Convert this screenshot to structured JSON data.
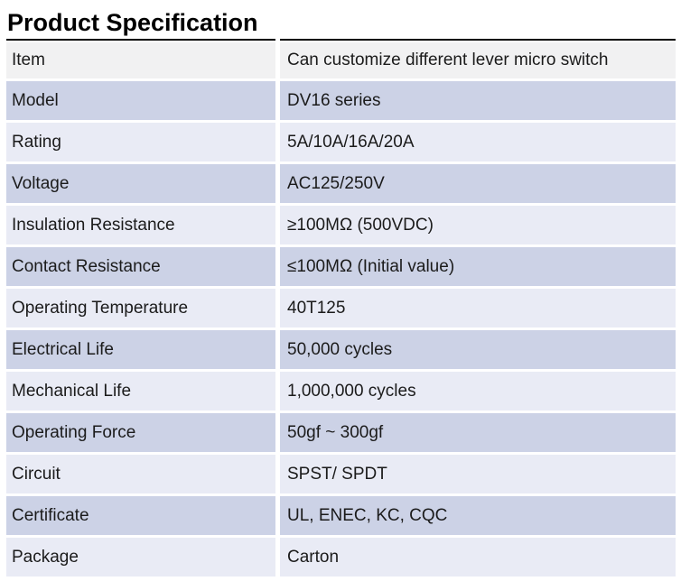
{
  "page": {
    "title": "Product Specification"
  },
  "table": {
    "rows": [
      {
        "label": "Item",
        "value": "Can customize different lever micro switch"
      },
      {
        "label": "Model",
        "value": "DV16 series"
      },
      {
        "label": "Rating",
        "value": "5A/10A/16A/20A"
      },
      {
        "label": "Voltage",
        "value": "AC125/250V"
      },
      {
        "label": "Insulation Resistance",
        "value": "≥100MΩ (500VDC)"
      },
      {
        "label": "Contact Resistance",
        "value": "≤100MΩ (Initial value)"
      },
      {
        "label": "Operating Temperature",
        "value": "40T125"
      },
      {
        "label": "Electrical Life",
        "value": "50,000 cycles"
      },
      {
        "label": "Mechanical Life",
        "value": "1,000,000 cycles"
      },
      {
        "label": "Operating Force",
        "value": "50gf ~ 300gf"
      },
      {
        "label": "Circuit",
        "value": "SPST/ SPDT"
      },
      {
        "label": "Certificate",
        "value": "UL, ENEC, KC, CQC"
      },
      {
        "label": "Package",
        "value": "Carton"
      }
    ],
    "colors": {
      "header_row_bg": "#f1f1f2",
      "row_medium_bg": "#ccd2e6",
      "row_light_bg": "#e9ebf5",
      "divider_line": "#000000",
      "text": "#1b1b1b"
    }
  }
}
